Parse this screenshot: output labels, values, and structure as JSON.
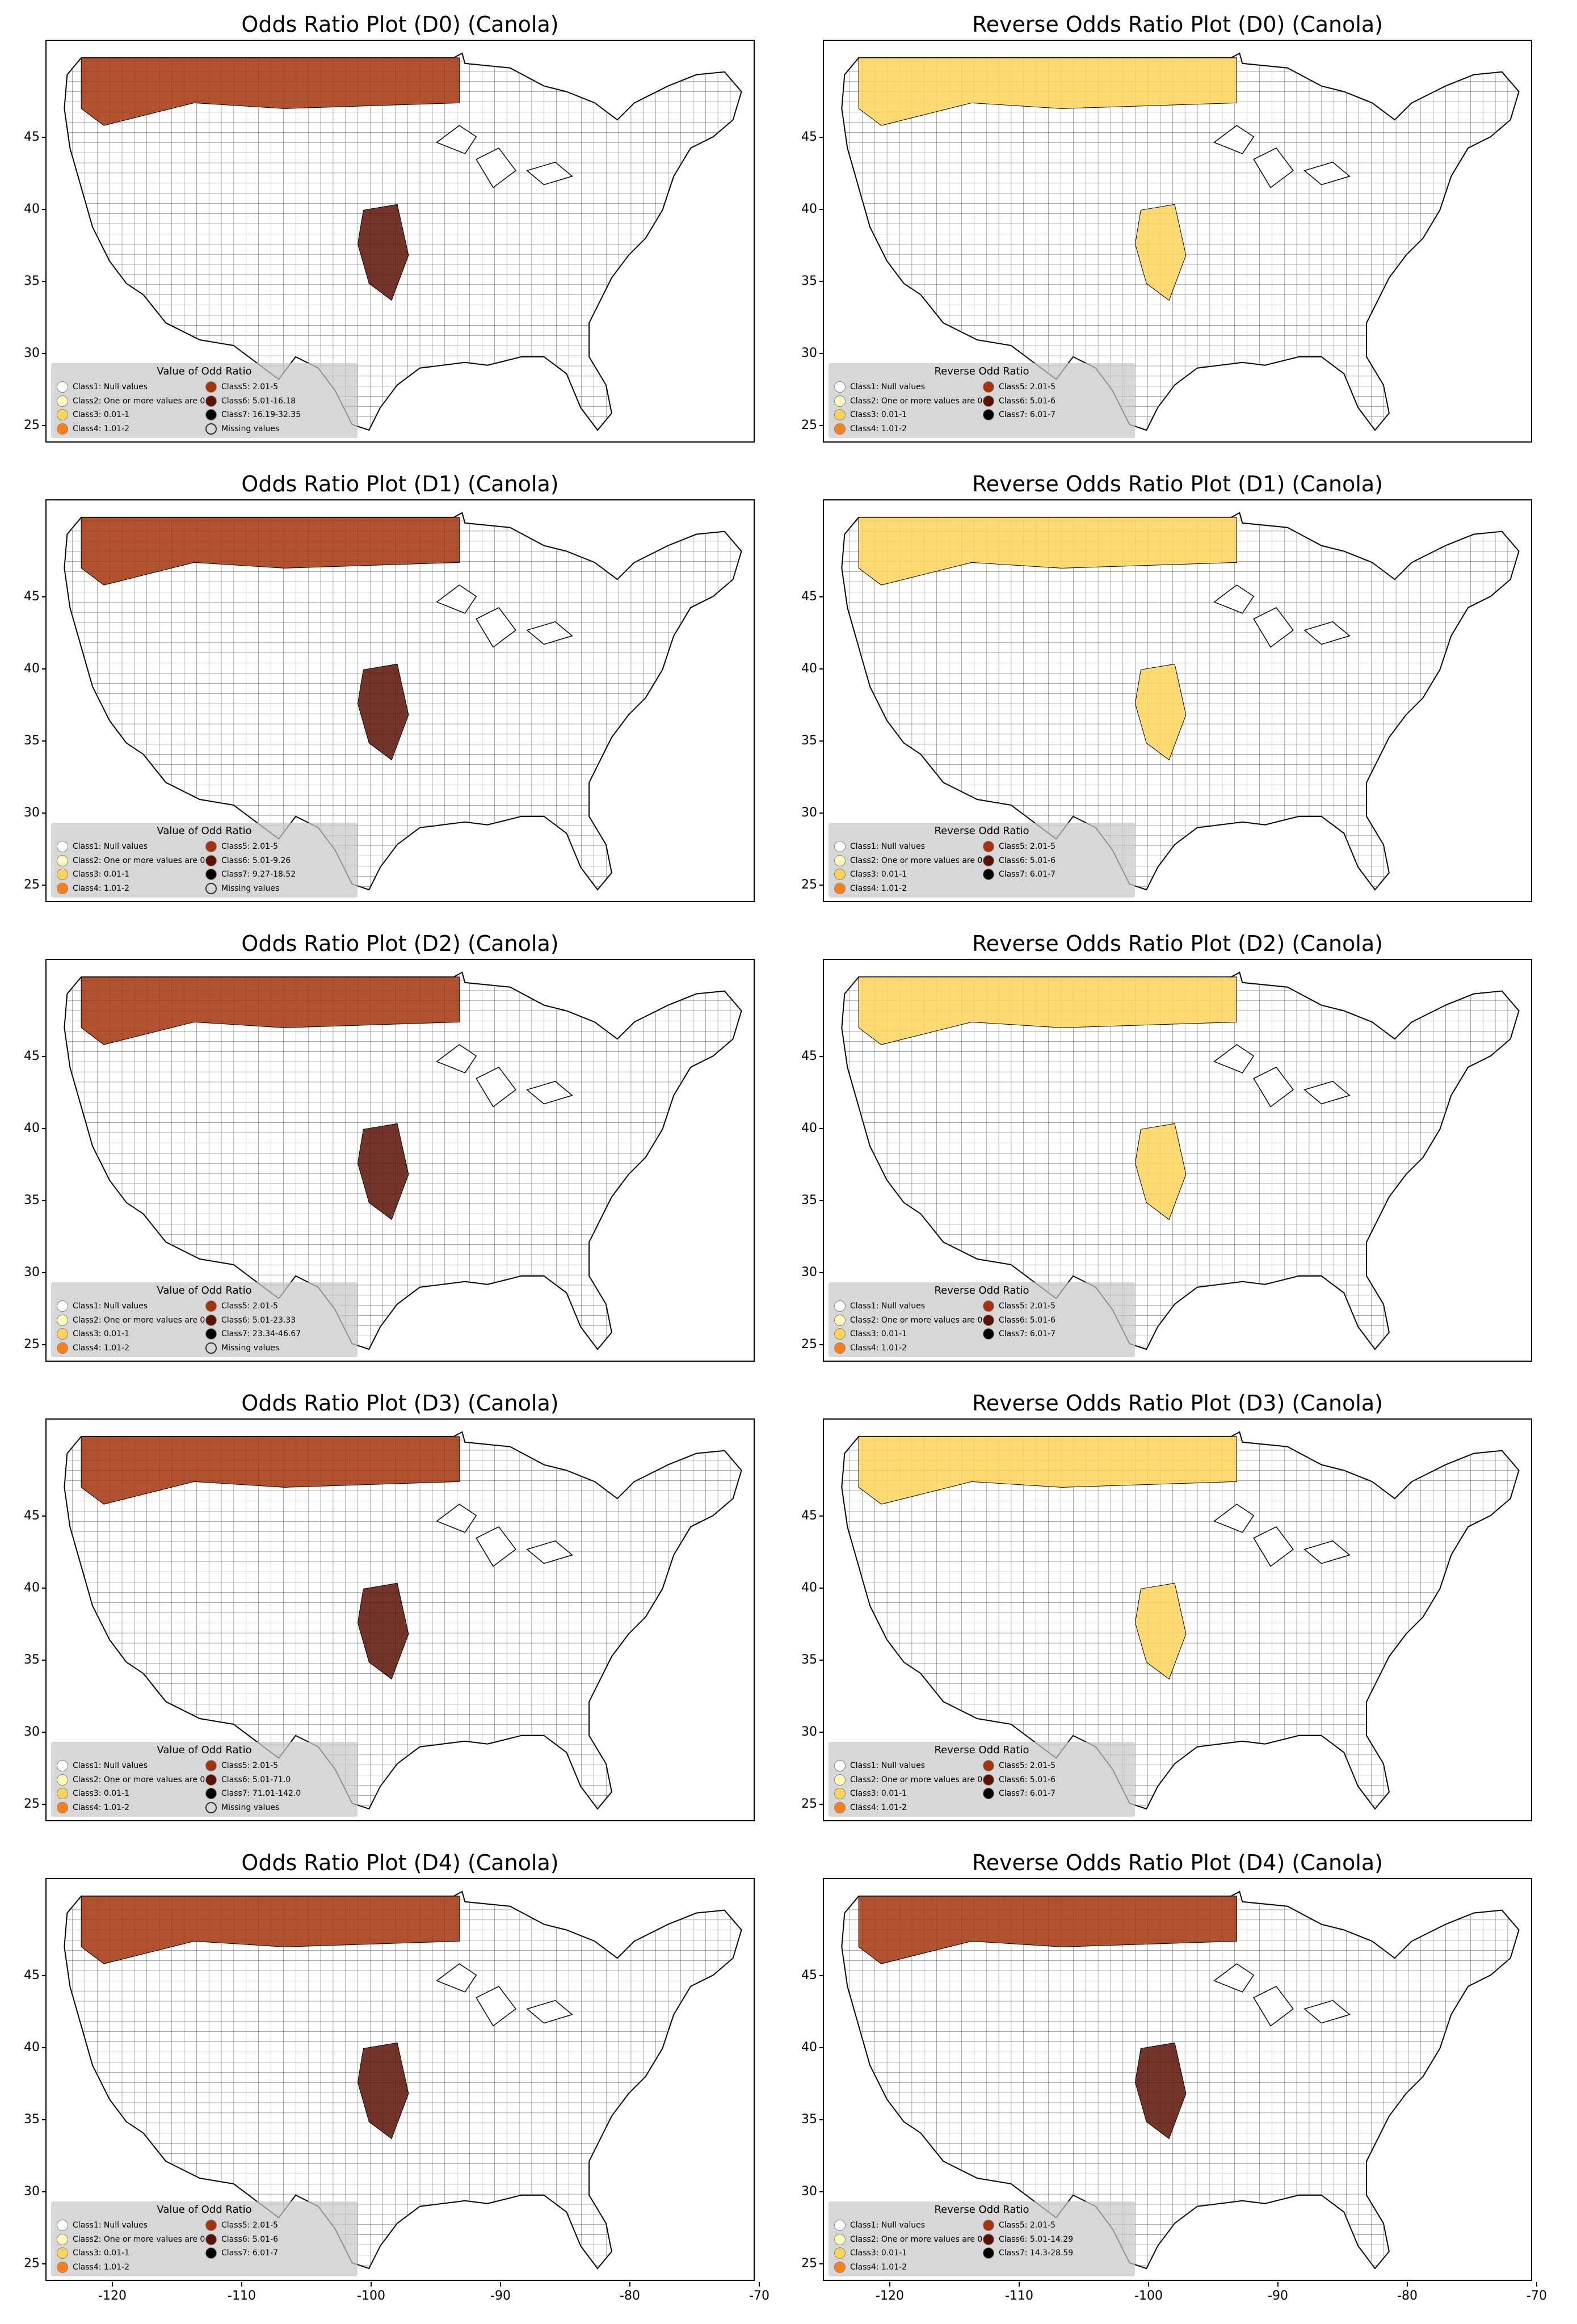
{
  "colors": {
    "class1": "#ffffff",
    "class2": "#fff7bc",
    "class3": "#fdd35a",
    "class4": "#fc7f19",
    "class5": "#a3340d",
    "class6": "#5a1205",
    "class7": "#000000",
    "missing": "#bdbdbd"
  },
  "axes": {
    "yticks": [
      "25",
      "30",
      "35",
      "40",
      "45"
    ],
    "xticks": [
      "-120",
      "-110",
      "-100",
      "-90",
      "-80",
      "-70"
    ]
  },
  "panels": [
    {
      "title": "Odds Ratio Plot (D0) (Canola)",
      "legend_title": "Value of Odd Ratio",
      "legend": [
        "Class1: Null values",
        "Class2: One or more values are 0",
        "Class3: 0.01-1",
        "Class4: 1.01-2",
        "Class5: 2.01-5",
        "Class6: 5.01-16.18",
        "Class7: 16.19-32.35",
        "Missing values"
      ]
    },
    {
      "title": "Reverse Odds Ratio Plot (D0) (Canola)",
      "legend_title": "Reverse Odd Ratio",
      "legend": [
        "Class1: Null values",
        "Class2: One or more values are 0",
        "Class3: 0.01-1",
        "Class4: 1.01-2",
        "Class5: 2.01-5",
        "Class6: 5.01-6",
        "Class7: 6.01-7"
      ]
    },
    {
      "title": "Odds Ratio Plot (D1) (Canola)",
      "legend_title": "Value of Odd Ratio",
      "legend": [
        "Class1: Null values",
        "Class2: One or more values are 0",
        "Class3: 0.01-1",
        "Class4: 1.01-2",
        "Class5: 2.01-5",
        "Class6: 5.01-9.26",
        "Class7: 9.27-18.52",
        "Missing values"
      ]
    },
    {
      "title": "Reverse Odds Ratio Plot (D1) (Canola)",
      "legend_title": "Reverse Odd Ratio",
      "legend": [
        "Class1: Null values",
        "Class2: One or more values are 0",
        "Class3: 0.01-1",
        "Class4: 1.01-2",
        "Class5: 2.01-5",
        "Class6: 5.01-6",
        "Class7: 6.01-7"
      ]
    },
    {
      "title": "Odds Ratio Plot (D2) (Canola)",
      "legend_title": "Value of Odd Ratio",
      "legend": [
        "Class1: Null values",
        "Class2: One or more values are 0",
        "Class3: 0.01-1",
        "Class4: 1.01-2",
        "Class5: 2.01-5",
        "Class6: 5.01-23.33",
        "Class7: 23.34-46.67",
        "Missing values"
      ]
    },
    {
      "title": "Reverse Odds Ratio Plot (D2) (Canola)",
      "legend_title": "Reverse Odd Ratio",
      "legend": [
        "Class1: Null values",
        "Class2: One or more values are 0",
        "Class3: 0.01-1",
        "Class4: 1.01-2",
        "Class5: 2.01-5",
        "Class6: 5.01-6",
        "Class7: 6.01-7"
      ]
    },
    {
      "title": "Odds Ratio Plot (D3) (Canola)",
      "legend_title": "Value of Odd Ratio",
      "legend": [
        "Class1: Null values",
        "Class2: One or more values are 0",
        "Class3: 0.01-1",
        "Class4: 1.01-2",
        "Class5: 2.01-5",
        "Class6: 5.01-71.0",
        "Class7: 71.01-142.0",
        "Missing values"
      ]
    },
    {
      "title": "Reverse Odds Ratio Plot (D3) (Canola)",
      "legend_title": "Reverse Odd Ratio",
      "legend": [
        "Class1: Null values",
        "Class2: One or more values are 0",
        "Class3: 0.01-1",
        "Class4: 1.01-2",
        "Class5: 2.01-5",
        "Class6: 5.01-6",
        "Class7: 6.01-7"
      ]
    },
    {
      "title": "Odds Ratio Plot (D4) (Canola)",
      "legend_title": "Value of Odd Ratio",
      "legend": [
        "Class1: Null values",
        "Class2: One or more values are 0",
        "Class3: 0.01-1",
        "Class4: 1.01-2",
        "Class5: 2.01-5",
        "Class6: 5.01-6",
        "Class7: 6.01-7"
      ]
    },
    {
      "title": "Reverse Odds Ratio Plot (D4) (Canola)",
      "legend_title": "Reverse Odd Ratio",
      "legend": [
        "Class1: Null values",
        "Class2: One or more values are 0",
        "Class3: 0.01-1",
        "Class4: 1.01-2",
        "Class5: 2.01-5",
        "Class6: 5.01-14.29",
        "Class7: 14.3-28.59"
      ]
    }
  ]
}
